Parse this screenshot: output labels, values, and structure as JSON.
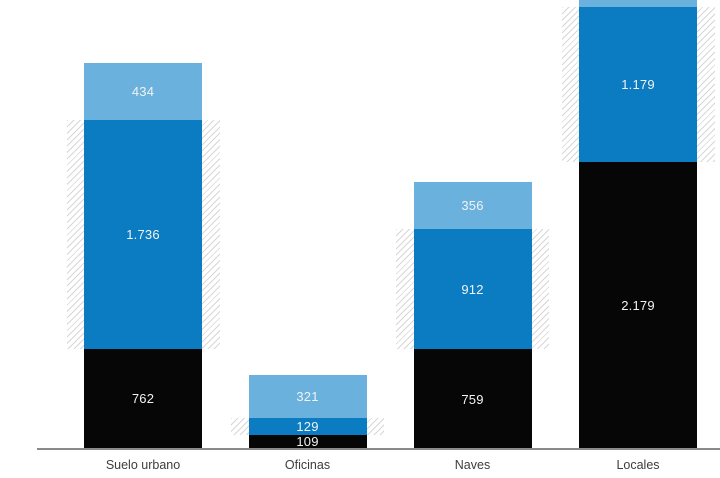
{
  "chart_data": {
    "type": "bar",
    "stacked": true,
    "orientation": "vertical",
    "categories": [
      "Suelo urbano",
      "Oficinas",
      "Naves",
      "Locales"
    ],
    "series": [
      {
        "name": "bottom-black-segment",
        "color": "#060606",
        "values": [
          762,
          109,
          759,
          2179
        ],
        "labels": [
          "762",
          "109",
          "759",
          "2.179"
        ]
      },
      {
        "name": "middle-blue-segment",
        "color": "#0c7cc2",
        "values": [
          1736,
          129,
          912,
          1179
        ],
        "labels": [
          "1.736",
          "129",
          "912",
          "1.179"
        ]
      },
      {
        "name": "top-lightblue-segment",
        "color": "#6bb1de",
        "values": [
          434,
          321,
          356,
          null
        ],
        "labels": [
          "434",
          "321",
          "356",
          null
        ],
        "clipped": [
          false,
          false,
          false,
          true
        ]
      }
    ],
    "hatch_band": {
      "style": "diagonal-stripes",
      "stripe_color": "#d7d7d7",
      "aligned_with": "middle-blue-segment",
      "wider_than_bar": true
    },
    "legend": "none",
    "gridlines": false,
    "y_axis": "none",
    "baseline_color": "#8a8a8a",
    "category_label_color": "#3d3d3d",
    "value_label_color": "#f2f2f2",
    "note_clipped": "Top light-blue segment of 'Locales' extends past the top edge of the image; its value label is not visible."
  }
}
